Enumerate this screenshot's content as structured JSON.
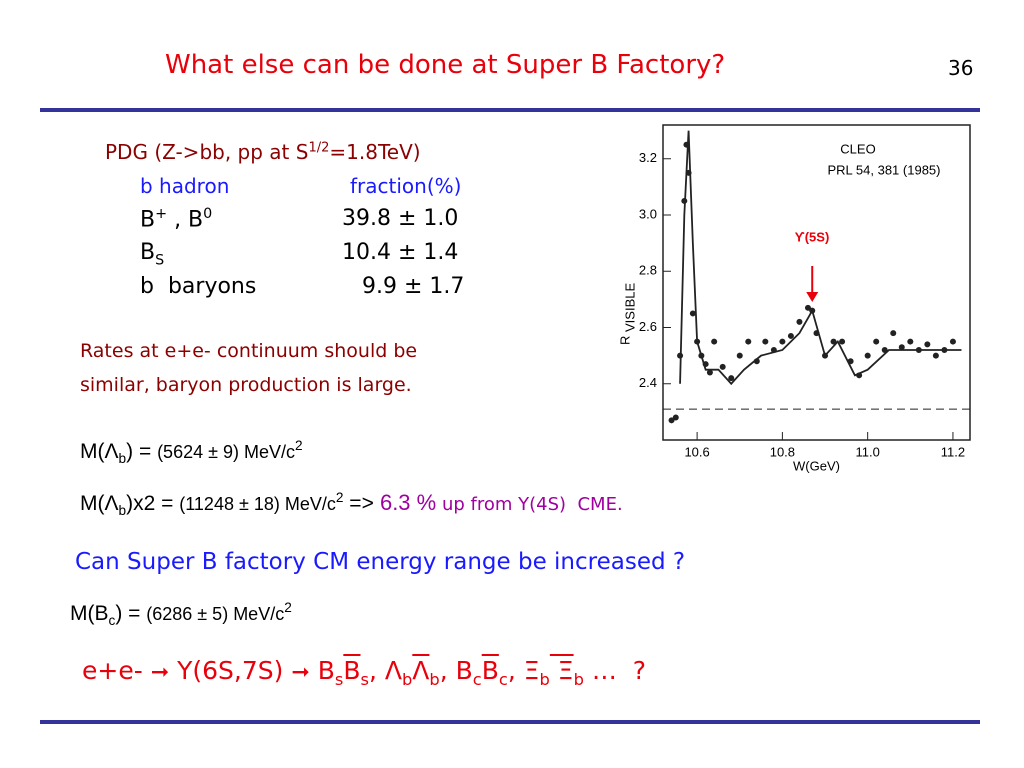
{
  "header": {
    "title": "What else can be done at Super B Factory?",
    "page": "36"
  },
  "pdg": {
    "title": [
      "PDG (Z->bb, pp at S",
      "1/2",
      "=1.8TeV)"
    ],
    "columns": [
      "b hadron",
      "fraction(%)"
    ],
    "rows": [
      {
        "name": [
          "B",
          "+",
          " , B",
          "0"
        ],
        "fraction": "39.8 ± 1.0"
      },
      {
        "name": [
          "B",
          "S"
        ],
        "fraction": "10.4 ± 1.4"
      },
      {
        "name": [
          "b  baryons"
        ],
        "fraction": "9.9 ± 1.7"
      }
    ]
  },
  "note": [
    "Rates at e+e- continuum should be",
    "similar, baryon production is large."
  ],
  "formulas": {
    "m_lambda": [
      "M(",
      "Λ",
      "b",
      ") = ",
      "(5624 ± 9) MeV/c",
      "2"
    ],
    "m_lambda2": [
      "M(",
      "Λ",
      "b",
      ")x",
      "2 = ",
      "(11248 ± 18) MeV/c",
      "2",
      " =>",
      " 6.3 %",
      " up from Y(4S)",
      "  CME."
    ],
    "question": "Can Super B factory CM energy range be increased ?",
    "m_bc": [
      "M(B",
      "c",
      ") = ",
      "(6286 ± 5) MeV/c",
      "2"
    ],
    "last": [
      "e+e-",
      "Y(6S,7S)",
      "B",
      "s",
      "B",
      "s",
      ", ",
      "Λ",
      "b",
      "Λ",
      "b",
      ", B",
      "c",
      "B",
      "c",
      ", ",
      "Ξ",
      "b",
      " Ξ",
      "b",
      " …  ?"
    ]
  },
  "chart_data": {
    "type": "scatter",
    "xlabel": "W(GeV)",
    "ylabel": [
      "R",
      "VISIBLE"
    ],
    "annotations": [
      "CLEO",
      "PRL 54, 381 (1985)",
      "ϒ(5S)"
    ],
    "marker_x": 10.87,
    "baseline": 2.31,
    "xlim": [
      10.52,
      11.24
    ],
    "ylim": [
      2.2,
      3.32
    ],
    "xticks": [
      10.6,
      10.8,
      {
        "value": 11,
        "label": "11.0"
      },
      11.2
    ],
    "yticks": [
      2.4,
      2.6,
      2.8,
      {
        "value": 3,
        "label": "3.0"
      },
      3.2
    ],
    "series": [
      {
        "type": "scatter",
        "color": "#222222",
        "x": [
          10.54,
          10.55,
          10.56,
          10.57,
          10.575,
          10.58,
          10.59,
          10.6,
          10.61,
          10.62,
          10.63,
          10.64,
          10.66,
          10.68,
          10.7,
          10.72,
          10.74,
          10.76,
          10.78,
          10.8,
          10.82,
          10.84,
          10.86,
          10.87,
          10.88,
          10.9,
          10.92,
          10.94,
          10.96,
          10.98,
          11.0,
          11.02,
          11.04,
          11.06,
          11.08,
          11.1,
          11.12,
          11.14,
          11.16,
          11.18,
          11.2
        ],
        "values": [
          2.27,
          2.28,
          2.5,
          3.05,
          3.25,
          3.15,
          2.65,
          2.55,
          2.5,
          2.47,
          2.44,
          2.55,
          2.46,
          2.42,
          2.5,
          2.55,
          2.48,
          2.55,
          2.52,
          2.55,
          2.57,
          2.62,
          2.67,
          2.66,
          2.58,
          2.5,
          2.55,
          2.55,
          2.48,
          2.43,
          2.5,
          2.55,
          2.52,
          2.58,
          2.53,
          2.55,
          2.52,
          2.54,
          2.5,
          2.52,
          2.55
        ]
      },
      {
        "type": "line",
        "color": "#222222",
        "x": [
          10.56,
          10.57,
          10.58,
          10.59,
          10.6,
          10.62,
          10.65,
          10.68,
          10.71,
          10.75,
          10.8,
          10.84,
          10.87,
          10.9,
          10.93,
          10.97,
          11.0,
          11.05,
          11.1,
          11.22
        ],
        "values": [
          2.4,
          3.0,
          3.3,
          2.9,
          2.55,
          2.45,
          2.45,
          2.4,
          2.45,
          2.5,
          2.52,
          2.58,
          2.66,
          2.5,
          2.55,
          2.43,
          2.45,
          2.52,
          2.52,
          2.52
        ]
      }
    ]
  }
}
